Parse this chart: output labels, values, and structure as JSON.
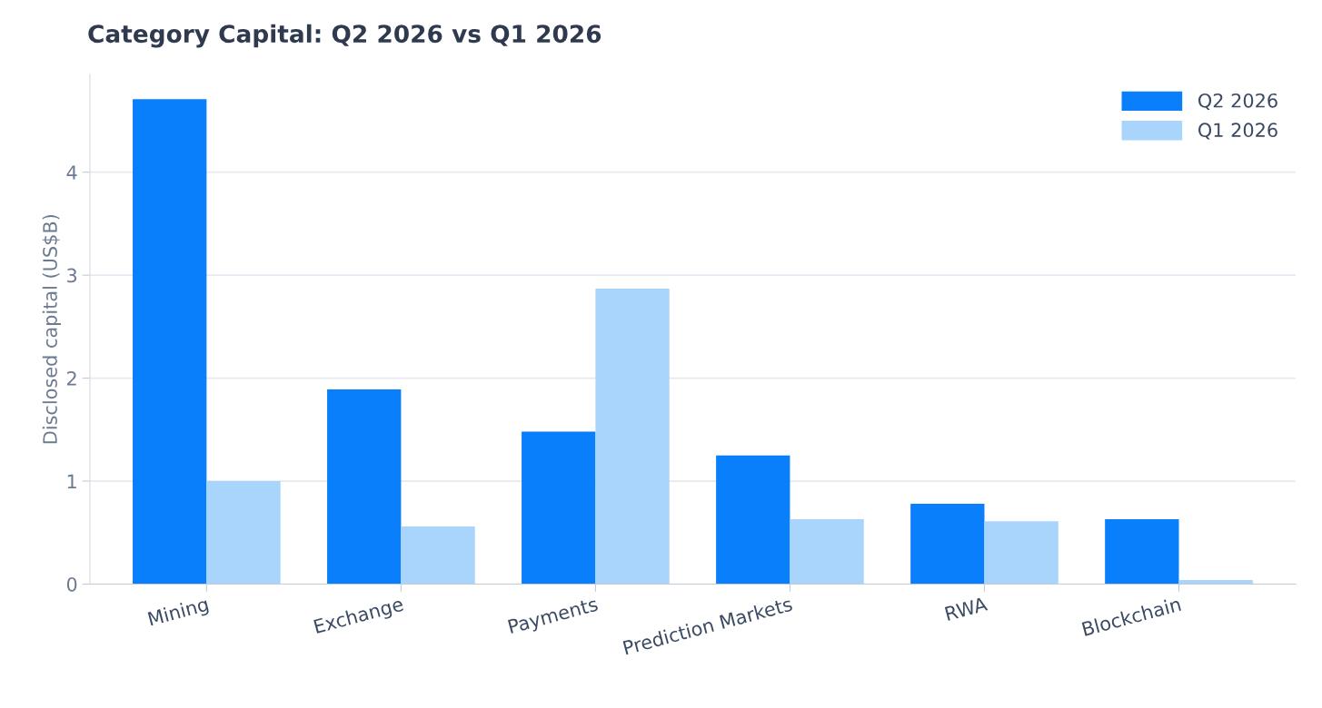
{
  "chart_data": {
    "type": "bar",
    "title": "Category Capital: Q2 2026 vs Q1 2026",
    "ylabel": "Disclosed capital (US$B)",
    "categories": [
      "Mining",
      "Exchange",
      "Payments",
      "Prediction Markets",
      "RWA",
      "Blockchain"
    ],
    "series": [
      {
        "name": "Q2 2026",
        "color": "#0a7ffb",
        "values": [
          4.71,
          1.89,
          1.48,
          1.25,
          0.78,
          0.63
        ]
      },
      {
        "name": "Q1 2026",
        "color": "#a9d4fc",
        "values": [
          1.0,
          0.56,
          2.87,
          0.63,
          0.61,
          0.04
        ]
      }
    ],
    "ylim": [
      0,
      4.95
    ],
    "yticks": [
      0,
      1,
      2,
      3,
      4
    ],
    "grid": "y",
    "legend": "top right"
  }
}
